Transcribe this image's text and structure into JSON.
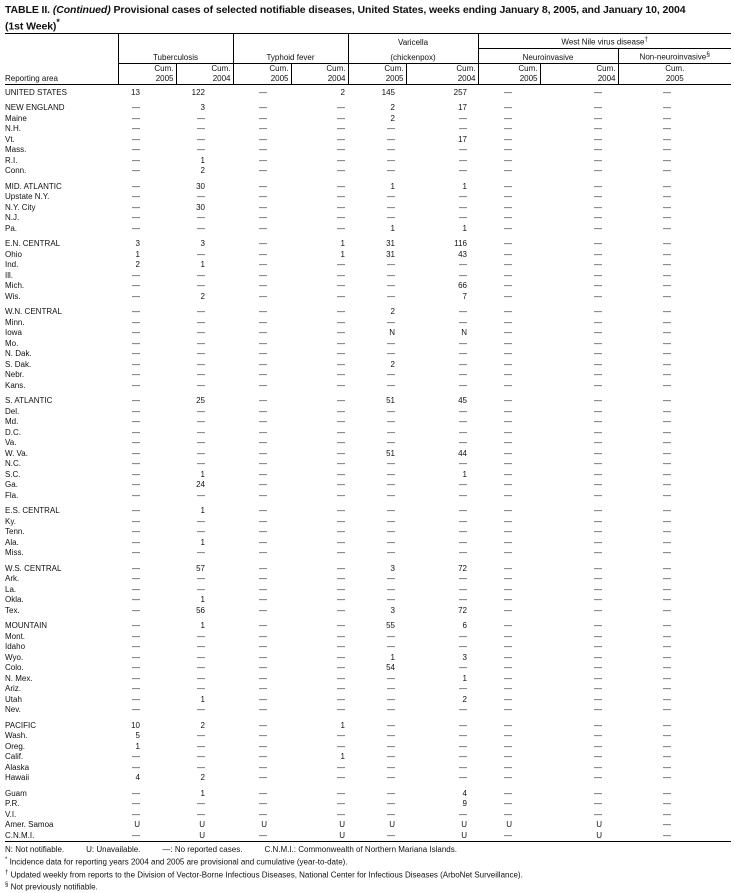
{
  "title": {
    "prefix": "TABLE II.",
    "continued": "(Continued)",
    "text": "Provisional cases of selected notifiable diseases, United States, weeks ending January 8, 2005, and January 10, 2004",
    "line2": "(1st Week)",
    "mark": "*"
  },
  "header": {
    "reporting_area": "Reporting area",
    "tuberculosis": "Tuberculosis",
    "typhoid": "Typhoid fever",
    "varicella_1": "Varicella",
    "varicella_2": "(chickenpox)",
    "west_nile": "West Nile virus disease",
    "west_nile_mark": "†",
    "neuro": "Neuroinvasive",
    "non_neuro": "Non-neuroinvasive",
    "non_neuro_mark": "§",
    "cum": "Cum.",
    "y2005": "2005",
    "y2004": "2004"
  },
  "groups": [
    {
      "rows": [
        {
          "area": "UNITED STATES",
          "v": [
            "13",
            "122",
            "—",
            "2",
            "145",
            "257",
            "—",
            "—",
            "—"
          ]
        }
      ]
    },
    {
      "rows": [
        {
          "area": "NEW ENGLAND",
          "v": [
            "—",
            "3",
            "—",
            "—",
            "2",
            "17",
            "—",
            "—",
            "—"
          ]
        },
        {
          "area": "Maine",
          "v": [
            "—",
            "—",
            "—",
            "—",
            "2",
            "—",
            "—",
            "—",
            "—"
          ]
        },
        {
          "area": "N.H.",
          "v": [
            "—",
            "—",
            "—",
            "—",
            "—",
            "—",
            "—",
            "—",
            "—"
          ]
        },
        {
          "area": "Vt.",
          "v": [
            "—",
            "—",
            "—",
            "—",
            "—",
            "17",
            "—",
            "—",
            "—"
          ]
        },
        {
          "area": "Mass.",
          "v": [
            "—",
            "—",
            "—",
            "—",
            "—",
            "—",
            "—",
            "—",
            "—"
          ]
        },
        {
          "area": "R.I.",
          "v": [
            "—",
            "1",
            "—",
            "—",
            "—",
            "—",
            "—",
            "—",
            "—"
          ]
        },
        {
          "area": "Conn.",
          "v": [
            "—",
            "2",
            "—",
            "—",
            "—",
            "—",
            "—",
            "—",
            "—"
          ]
        }
      ]
    },
    {
      "rows": [
        {
          "area": "MID. ATLANTIC",
          "v": [
            "—",
            "30",
            "—",
            "—",
            "1",
            "1",
            "—",
            "—",
            "—"
          ]
        },
        {
          "area": "Upstate N.Y.",
          "v": [
            "—",
            "—",
            "—",
            "—",
            "—",
            "—",
            "—",
            "—",
            "—"
          ]
        },
        {
          "area": "N.Y. City",
          "v": [
            "—",
            "30",
            "—",
            "—",
            "—",
            "—",
            "—",
            "—",
            "—"
          ]
        },
        {
          "area": "N.J.",
          "v": [
            "—",
            "—",
            "—",
            "—",
            "—",
            "—",
            "—",
            "—",
            "—"
          ]
        },
        {
          "area": "Pa.",
          "v": [
            "—",
            "—",
            "—",
            "—",
            "1",
            "1",
            "—",
            "—",
            "—"
          ]
        }
      ]
    },
    {
      "rows": [
        {
          "area": "E.N. CENTRAL",
          "v": [
            "3",
            "3",
            "—",
            "1",
            "31",
            "116",
            "—",
            "—",
            "—"
          ]
        },
        {
          "area": "Ohio",
          "v": [
            "1",
            "—",
            "—",
            "1",
            "31",
            "43",
            "—",
            "—",
            "—"
          ]
        },
        {
          "area": "Ind.",
          "v": [
            "2",
            "1",
            "—",
            "—",
            "—",
            "—",
            "—",
            "—",
            "—"
          ]
        },
        {
          "area": "Ill.",
          "v": [
            "—",
            "—",
            "—",
            "—",
            "—",
            "—",
            "—",
            "—",
            "—"
          ]
        },
        {
          "area": "Mich.",
          "v": [
            "—",
            "—",
            "—",
            "—",
            "—",
            "66",
            "—",
            "—",
            "—"
          ]
        },
        {
          "area": "Wis.",
          "v": [
            "—",
            "2",
            "—",
            "—",
            "—",
            "7",
            "—",
            "—",
            "—"
          ]
        }
      ]
    },
    {
      "rows": [
        {
          "area": "W.N. CENTRAL",
          "v": [
            "—",
            "—",
            "—",
            "—",
            "2",
            "—",
            "—",
            "—",
            "—"
          ]
        },
        {
          "area": "Minn.",
          "v": [
            "—",
            "—",
            "—",
            "—",
            "—",
            "—",
            "—",
            "—",
            "—"
          ]
        },
        {
          "area": "Iowa",
          "v": [
            "—",
            "—",
            "—",
            "—",
            "N",
            "N",
            "—",
            "—",
            "—"
          ]
        },
        {
          "area": "Mo.",
          "v": [
            "—",
            "—",
            "—",
            "—",
            "—",
            "—",
            "—",
            "—",
            "—"
          ]
        },
        {
          "area": "N. Dak.",
          "v": [
            "—",
            "—",
            "—",
            "—",
            "—",
            "—",
            "—",
            "—",
            "—"
          ]
        },
        {
          "area": "S. Dak.",
          "v": [
            "—",
            "—",
            "—",
            "—",
            "2",
            "—",
            "—",
            "—",
            "—"
          ]
        },
        {
          "area": "Nebr.",
          "v": [
            "—",
            "—",
            "—",
            "—",
            "—",
            "—",
            "—",
            "—",
            "—"
          ]
        },
        {
          "area": "Kans.",
          "v": [
            "—",
            "—",
            "—",
            "—",
            "—",
            "—",
            "—",
            "—",
            "—"
          ]
        }
      ]
    },
    {
      "rows": [
        {
          "area": "S. ATLANTIC",
          "v": [
            "—",
            "25",
            "—",
            "—",
            "51",
            "45",
            "—",
            "—",
            "—"
          ]
        },
        {
          "area": "Del.",
          "v": [
            "—",
            "—",
            "—",
            "—",
            "—",
            "—",
            "—",
            "—",
            "—"
          ]
        },
        {
          "area": "Md.",
          "v": [
            "—",
            "—",
            "—",
            "—",
            "—",
            "—",
            "—",
            "—",
            "—"
          ]
        },
        {
          "area": "D.C.",
          "v": [
            "—",
            "—",
            "—",
            "—",
            "—",
            "—",
            "—",
            "—",
            "—"
          ]
        },
        {
          "area": "Va.",
          "v": [
            "—",
            "—",
            "—",
            "—",
            "—",
            "—",
            "—",
            "—",
            "—"
          ]
        },
        {
          "area": "W. Va.",
          "v": [
            "—",
            "—",
            "—",
            "—",
            "51",
            "44",
            "—",
            "—",
            "—"
          ]
        },
        {
          "area": "N.C.",
          "v": [
            "—",
            "—",
            "—",
            "—",
            "—",
            "—",
            "—",
            "—",
            "—"
          ]
        },
        {
          "area": "S.C.",
          "v": [
            "—",
            "1",
            "—",
            "—",
            "—",
            "1",
            "—",
            "—",
            "—"
          ]
        },
        {
          "area": "Ga.",
          "v": [
            "—",
            "24",
            "—",
            "—",
            "—",
            "—",
            "—",
            "—",
            "—"
          ]
        },
        {
          "area": "Fla.",
          "v": [
            "—",
            "—",
            "—",
            "—",
            "—",
            "—",
            "—",
            "—",
            "—"
          ]
        }
      ]
    },
    {
      "rows": [
        {
          "area": "E.S. CENTRAL",
          "v": [
            "—",
            "1",
            "—",
            "—",
            "—",
            "—",
            "—",
            "—",
            "—"
          ]
        },
        {
          "area": "Ky.",
          "v": [
            "—",
            "—",
            "—",
            "—",
            "—",
            "—",
            "—",
            "—",
            "—"
          ]
        },
        {
          "area": "Tenn.",
          "v": [
            "—",
            "—",
            "—",
            "—",
            "—",
            "—",
            "—",
            "—",
            "—"
          ]
        },
        {
          "area": "Ala.",
          "v": [
            "—",
            "1",
            "—",
            "—",
            "—",
            "—",
            "—",
            "—",
            "—"
          ]
        },
        {
          "area": "Miss.",
          "v": [
            "—",
            "—",
            "—",
            "—",
            "—",
            "—",
            "—",
            "—",
            "—"
          ]
        }
      ]
    },
    {
      "rows": [
        {
          "area": "W.S. CENTRAL",
          "v": [
            "—",
            "57",
            "—",
            "—",
            "3",
            "72",
            "—",
            "—",
            "—"
          ]
        },
        {
          "area": "Ark.",
          "v": [
            "—",
            "—",
            "—",
            "—",
            "—",
            "—",
            "—",
            "—",
            "—"
          ]
        },
        {
          "area": "La.",
          "v": [
            "—",
            "—",
            "—",
            "—",
            "—",
            "—",
            "—",
            "—",
            "—"
          ]
        },
        {
          "area": "Okla.",
          "v": [
            "—",
            "1",
            "—",
            "—",
            "—",
            "—",
            "—",
            "—",
            "—"
          ]
        },
        {
          "area": "Tex.",
          "v": [
            "—",
            "56",
            "—",
            "—",
            "3",
            "72",
            "—",
            "—",
            "—"
          ]
        }
      ]
    },
    {
      "rows": [
        {
          "area": "MOUNTAIN",
          "v": [
            "—",
            "1",
            "—",
            "—",
            "55",
            "6",
            "—",
            "—",
            "—"
          ]
        },
        {
          "area": "Mont.",
          "v": [
            "—",
            "—",
            "—",
            "—",
            "—",
            "—",
            "—",
            "—",
            "—"
          ]
        },
        {
          "area": "Idaho",
          "v": [
            "—",
            "—",
            "—",
            "—",
            "—",
            "—",
            "—",
            "—",
            "—"
          ]
        },
        {
          "area": "Wyo.",
          "v": [
            "—",
            "—",
            "—",
            "—",
            "1",
            "3",
            "—",
            "—",
            "—"
          ]
        },
        {
          "area": "Colo.",
          "v": [
            "—",
            "—",
            "—",
            "—",
            "54",
            "—",
            "—",
            "—",
            "—"
          ]
        },
        {
          "area": "N. Mex.",
          "v": [
            "—",
            "—",
            "—",
            "—",
            "—",
            "1",
            "—",
            "—",
            "—"
          ]
        },
        {
          "area": "Ariz.",
          "v": [
            "—",
            "—",
            "—",
            "—",
            "—",
            "—",
            "—",
            "—",
            "—"
          ]
        },
        {
          "area": "Utah",
          "v": [
            "—",
            "1",
            "—",
            "—",
            "—",
            "2",
            "—",
            "—",
            "—"
          ]
        },
        {
          "area": "Nev.",
          "v": [
            "—",
            "—",
            "—",
            "—",
            "—",
            "—",
            "—",
            "—",
            "—"
          ]
        }
      ]
    },
    {
      "rows": [
        {
          "area": "PACIFIC",
          "v": [
            "10",
            "2",
            "—",
            "1",
            "—",
            "—",
            "—",
            "—",
            "—"
          ]
        },
        {
          "area": "Wash.",
          "v": [
            "5",
            "—",
            "—",
            "—",
            "—",
            "—",
            "—",
            "—",
            "—"
          ]
        },
        {
          "area": "Oreg.",
          "v": [
            "1",
            "—",
            "—",
            "—",
            "—",
            "—",
            "—",
            "—",
            "—"
          ]
        },
        {
          "area": "Calif.",
          "v": [
            "—",
            "—",
            "—",
            "1",
            "—",
            "—",
            "—",
            "—",
            "—"
          ]
        },
        {
          "area": "Alaska",
          "v": [
            "—",
            "—",
            "—",
            "—",
            "—",
            "—",
            "—",
            "—",
            "—"
          ]
        },
        {
          "area": "Hawaii",
          "v": [
            "4",
            "2",
            "—",
            "—",
            "—",
            "—",
            "—",
            "—",
            "—"
          ]
        }
      ]
    },
    {
      "rows": [
        {
          "area": "Guam",
          "v": [
            "—",
            "1",
            "—",
            "—",
            "—",
            "4",
            "—",
            "—",
            "—"
          ]
        },
        {
          "area": "P.R.",
          "v": [
            "—",
            "—",
            "—",
            "—",
            "—",
            "9",
            "—",
            "—",
            "—"
          ]
        },
        {
          "area": "V.I.",
          "v": [
            "—",
            "—",
            "—",
            "—",
            "—",
            "—",
            "—",
            "—",
            "—"
          ]
        },
        {
          "area": "Amer. Samoa",
          "v": [
            "U",
            "U",
            "U",
            "U",
            "U",
            "U",
            "U",
            "U",
            "—"
          ]
        },
        {
          "area": "C.N.M.I.",
          "v": [
            "—",
            "U",
            "—",
            "U",
            "—",
            "U",
            "—",
            "U",
            "—"
          ]
        }
      ]
    }
  ],
  "footnotes": {
    "legend": [
      "N: Not notifiable.",
      "U: Unavailable.",
      "—: No reported cases.",
      "C.N.M.I.: Commonwealth of Northern Mariana Islands."
    ],
    "notes": [
      {
        "mark": "*",
        "text": "Incidence data for reporting years 2004 and 2005 are provisional and cumulative (year-to-date)."
      },
      {
        "mark": "†",
        "text": "Updated weekly from reports to the Division of Vector-Borne Infectious Diseases, National Center for Infectious Diseases (ArboNet Surveillance)."
      },
      {
        "mark": "§",
        "text": "Not previously notifiable."
      }
    ]
  }
}
